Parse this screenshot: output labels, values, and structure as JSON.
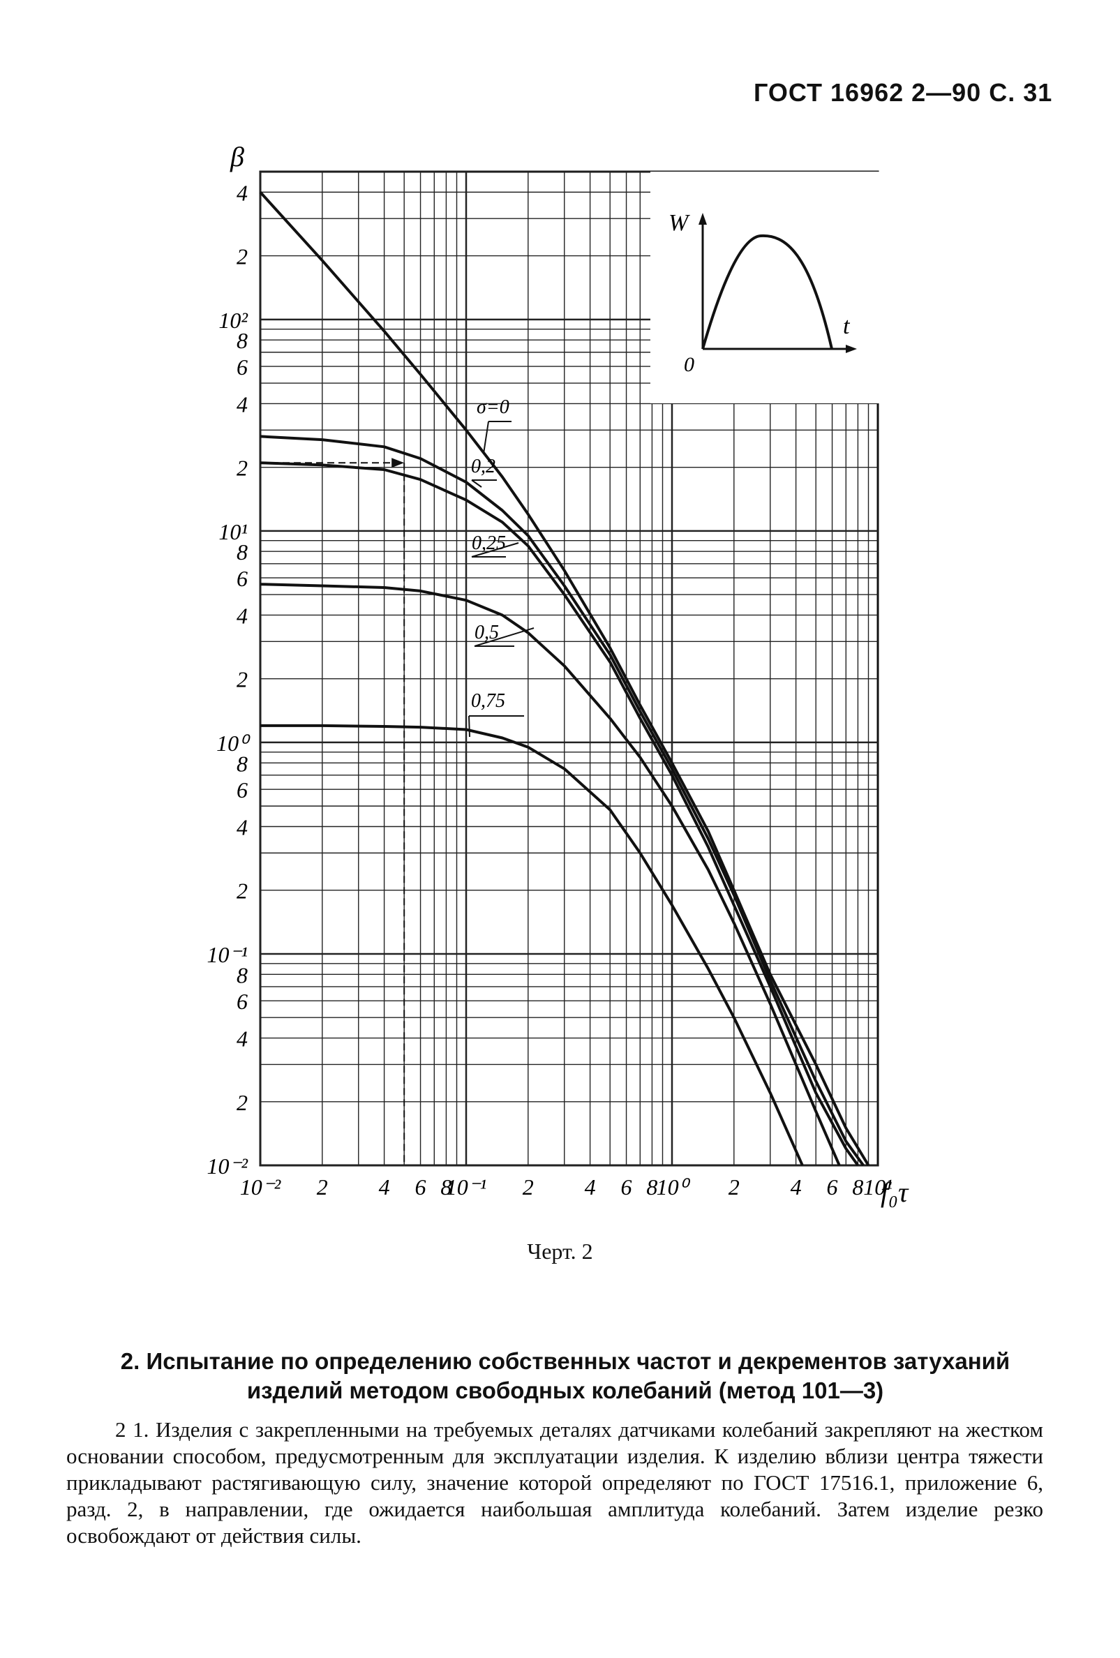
{
  "header": {
    "text": "ГОСТ 16962 2—90 С. 31"
  },
  "figure": {
    "caption": "Черт. 2",
    "y_label": "β",
    "x_label": "f₀τ",
    "inset": {
      "y_label": "W",
      "x_label": "t",
      "origin_label": "0"
    }
  },
  "chart_data": {
    "type": "line",
    "x_scale": "log",
    "y_scale": "log",
    "xlim": [
      0.01,
      10
    ],
    "ylim": [
      0.01,
      500
    ],
    "xlabel": "f₀τ",
    "ylabel": "β",
    "grid": true,
    "x_tick_labels": [
      {
        "v": 0.01,
        "t": "10⁻²"
      },
      {
        "v": 0.02,
        "t": "2"
      },
      {
        "v": 0.04,
        "t": "4"
      },
      {
        "v": 0.06,
        "t": "6"
      },
      {
        "v": 0.08,
        "t": "8"
      },
      {
        "v": 0.1,
        "t": "10⁻¹"
      },
      {
        "v": 0.2,
        "t": "2"
      },
      {
        "v": 0.4,
        "t": "4"
      },
      {
        "v": 0.6,
        "t": "6"
      },
      {
        "v": 0.8,
        "t": "8"
      },
      {
        "v": 1,
        "t": "10⁰"
      },
      {
        "v": 2,
        "t": "2"
      },
      {
        "v": 4,
        "t": "4"
      },
      {
        "v": 6,
        "t": "6"
      },
      {
        "v": 8,
        "t": "8"
      },
      {
        "v": 10,
        "t": "10¹"
      }
    ],
    "y_tick_labels": [
      {
        "v": 400,
        "t": "4"
      },
      {
        "v": 200,
        "t": "2"
      },
      {
        "v": 100,
        "t": "10²"
      },
      {
        "v": 80,
        "t": "8"
      },
      {
        "v": 60,
        "t": "6"
      },
      {
        "v": 40,
        "t": "4"
      },
      {
        "v": 20,
        "t": "2"
      },
      {
        "v": 10,
        "t": "10¹"
      },
      {
        "v": 8,
        "t": "8"
      },
      {
        "v": 6,
        "t": "6"
      },
      {
        "v": 4,
        "t": "4"
      },
      {
        "v": 2,
        "t": "2"
      },
      {
        "v": 1,
        "t": "10⁰"
      },
      {
        "v": 0.8,
        "t": "8"
      },
      {
        "v": 0.6,
        "t": "6"
      },
      {
        "v": 0.4,
        "t": "4"
      },
      {
        "v": 0.2,
        "t": "2"
      },
      {
        "v": 0.1,
        "t": "10⁻¹"
      },
      {
        "v": 0.08,
        "t": "8"
      },
      {
        "v": 0.06,
        "t": "6"
      },
      {
        "v": 0.04,
        "t": "4"
      },
      {
        "v": 0.02,
        "t": "2"
      },
      {
        "v": 0.01,
        "t": "10⁻²"
      }
    ],
    "series": [
      {
        "label": "σ=0",
        "points": [
          [
            0.01,
            400
          ],
          [
            0.02,
            190
          ],
          [
            0.04,
            88
          ],
          [
            0.06,
            55
          ],
          [
            0.1,
            30
          ],
          [
            0.15,
            18
          ],
          [
            0.2,
            12
          ],
          [
            0.3,
            6.5
          ],
          [
            0.5,
            2.8
          ],
          [
            0.7,
            1.5
          ],
          [
            1,
            0.8
          ],
          [
            1.5,
            0.38
          ],
          [
            2,
            0.2
          ],
          [
            3,
            0.08
          ],
          [
            5,
            0.03
          ],
          [
            7,
            0.015
          ],
          [
            9,
            0.01
          ]
        ]
      },
      {
        "label": "0,2",
        "points": [
          [
            0.01,
            28
          ],
          [
            0.02,
            27
          ],
          [
            0.04,
            25
          ],
          [
            0.06,
            22
          ],
          [
            0.1,
            17
          ],
          [
            0.15,
            12.5
          ],
          [
            0.2,
            9.5
          ],
          [
            0.3,
            5.5
          ],
          [
            0.5,
            2.6
          ],
          [
            0.7,
            1.4
          ],
          [
            1,
            0.75
          ],
          [
            1.5,
            0.35
          ],
          [
            2,
            0.19
          ],
          [
            3,
            0.075
          ],
          [
            5,
            0.025
          ],
          [
            7,
            0.013
          ],
          [
            8.5,
            0.01
          ]
        ]
      },
      {
        "label": "0,25",
        "points": [
          [
            0.01,
            21
          ],
          [
            0.02,
            20.5
          ],
          [
            0.04,
            19.5
          ],
          [
            0.06,
            17.5
          ],
          [
            0.1,
            14
          ],
          [
            0.15,
            11
          ],
          [
            0.2,
            8.5
          ],
          [
            0.3,
            5
          ],
          [
            0.5,
            2.4
          ],
          [
            0.7,
            1.3
          ],
          [
            1,
            0.7
          ],
          [
            1.5,
            0.32
          ],
          [
            2,
            0.17
          ],
          [
            3,
            0.07
          ],
          [
            5,
            0.022
          ],
          [
            7,
            0.012
          ],
          [
            8,
            0.01
          ]
        ]
      },
      {
        "label": "0,5",
        "points": [
          [
            0.01,
            5.6
          ],
          [
            0.02,
            5.5
          ],
          [
            0.04,
            5.4
          ],
          [
            0.06,
            5.2
          ],
          [
            0.1,
            4.7
          ],
          [
            0.15,
            4
          ],
          [
            0.2,
            3.3
          ],
          [
            0.3,
            2.3
          ],
          [
            0.5,
            1.3
          ],
          [
            0.7,
            0.85
          ],
          [
            1,
            0.5
          ],
          [
            1.5,
            0.25
          ],
          [
            2,
            0.14
          ],
          [
            3,
            0.058
          ],
          [
            5,
            0.018
          ],
          [
            6.5,
            0.01
          ]
        ]
      },
      {
        "label": "0,75",
        "points": [
          [
            0.01,
            1.2
          ],
          [
            0.02,
            1.2
          ],
          [
            0.04,
            1.19
          ],
          [
            0.06,
            1.18
          ],
          [
            0.1,
            1.15
          ],
          [
            0.15,
            1.05
          ],
          [
            0.2,
            0.95
          ],
          [
            0.3,
            0.75
          ],
          [
            0.5,
            0.48
          ],
          [
            0.7,
            0.3
          ],
          [
            1,
            0.17
          ],
          [
            1.5,
            0.085
          ],
          [
            2,
            0.05
          ],
          [
            3,
            0.022
          ],
          [
            4.3,
            0.01
          ]
        ]
      }
    ]
  },
  "section": {
    "title": "2. Испытание по определению собственных частот и декрементов затуханий изделий методом свободных колебаний (метод 101—3)",
    "paragraph": "2 1. Изделия с закрепленными на требуемых деталях датчиками колебаний закрепляют на жестком основании способом, предусмотренным для эксплуатации изделия. К изделию вблизи центра тяжести прикладывают растягивающую силу, значение которой определяют по ГОСТ 17516.1, приложение 6, разд. 2, в направлении, где ожидается наибольшая амплитуда колебаний. Затем изделие резко освобождают от действия силы."
  }
}
